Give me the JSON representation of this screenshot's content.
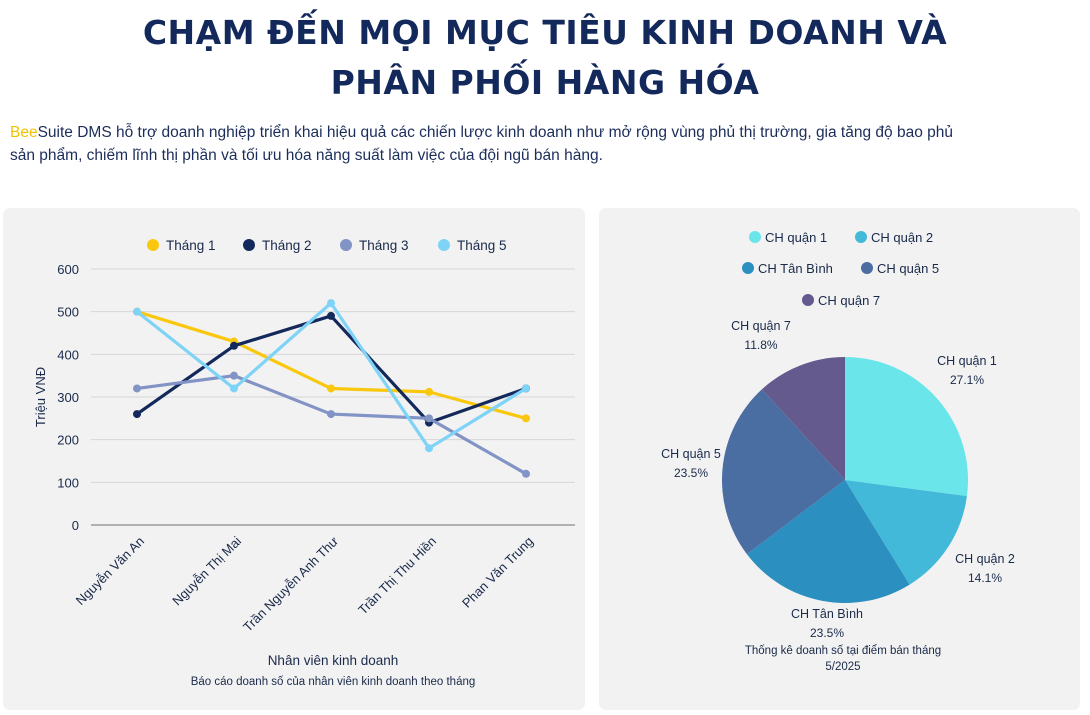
{
  "header": {
    "title_line1": "CHẠM ĐẾN MỌI MỤC TIÊU KINH DOANH VÀ",
    "title_line2": "PHÂN PHỐI HÀNG HÓA"
  },
  "intro": {
    "brand_bee": "Bee",
    "text_line1": "Suite DMS hỗ trợ doanh nghiệp triển khai hiệu quả các chiến lược kinh doanh như mở rộng vùng phủ thị trường, gia tăng độ bao phủ",
    "text_line2": "sản phẩm, chiếm lĩnh thị phần và tối ưu hóa năng suất làm việc của đội ngũ bán hàng."
  },
  "chart_data": [
    {
      "type": "line",
      "categories": [
        "Nguyễn Văn An",
        "Nguyễn Thị Mai",
        "Trần Nguyễn Anh Thư",
        "Trần Thị Thu Hiền",
        "Phan Văn Trung"
      ],
      "series": [
        {
          "name": "Tháng 1",
          "color": "#f9c80e",
          "values": [
            500,
            430,
            320,
            312,
            250
          ]
        },
        {
          "name": "Tháng 2",
          "color": "#13295b",
          "values": [
            260,
            420,
            490,
            240,
            320
          ]
        },
        {
          "name": "Tháng 3",
          "color": "#8293c5",
          "values": [
            320,
            350,
            260,
            250,
            120
          ]
        },
        {
          "name": "Tháng 5",
          "color": "#7ed3f7",
          "values": [
            500,
            320,
            520,
            180,
            320
          ]
        }
      ],
      "ylim": [
        0,
        600
      ],
      "yticks": [
        0,
        100,
        200,
        300,
        400,
        500,
        600
      ],
      "ylabel": "Triệu VNĐ",
      "xlabel": "Nhân viên kinh doanh",
      "caption": "Báo cáo doanh số của nhân viên kinh doanh theo tháng",
      "legend_position": "top",
      "grid": true
    },
    {
      "type": "pie",
      "slices": [
        {
          "label": "CH quận 1",
          "value": 27.1,
          "display": "27.1%",
          "color": "#6ae5ea"
        },
        {
          "label": "CH quận 2",
          "value": 14.1,
          "display": "14.1%",
          "color": "#42b9d8"
        },
        {
          "label": "CH Tân Bình",
          "value": 23.5,
          "display": "23.5%",
          "color": "#2b8fc0"
        },
        {
          "label": "CH quận 5",
          "value": 23.5,
          "display": "23.5%",
          "color": "#4a6ea1"
        },
        {
          "label": "CH quận 7",
          "value": 11.8,
          "display": "11.8%",
          "color": "#645a8e"
        }
      ],
      "caption_line1": "Thống kê doanh số tại điểm bán tháng",
      "caption_line2": "5/2025",
      "legend_position": "top"
    }
  ]
}
